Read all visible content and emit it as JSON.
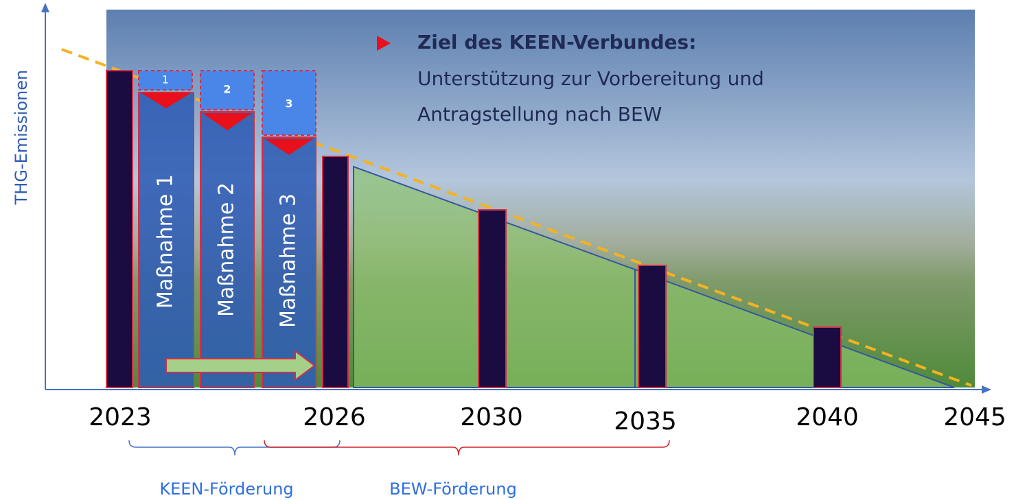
{
  "diagram": {
    "y_axis_label": "THG-Emissionen",
    "years": [
      "2023",
      "2026",
      "2030",
      "2035",
      "2040",
      "2045"
    ],
    "measures": [
      "Maßnahme 1",
      "Maßnahme 2",
      "Maßnahme 3"
    ],
    "measure_numbers": [
      "1",
      "2",
      "3"
    ],
    "callout": {
      "title": "Ziel des KEEN-Verbundes:",
      "lines": [
        "Unterstützung zur Vorbereitung und",
        "Antragstellung nach BEW"
      ]
    },
    "braces": [
      "KEEN-Förderung",
      "BEW-Förderung"
    ]
  }
}
